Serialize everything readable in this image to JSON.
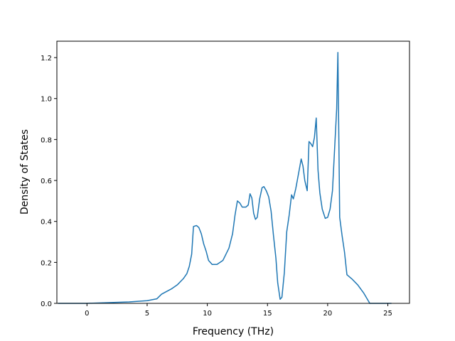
{
  "chart_data": {
    "type": "line",
    "title": "",
    "xlabel": "Frequency (THz)",
    "ylabel": "Density of States",
    "xlim": [
      -2.5,
      26.8
    ],
    "ylim": [
      0.0,
      1.28
    ],
    "xticks": [
      0,
      5,
      10,
      15,
      20,
      25
    ],
    "yticks": [
      0.0,
      0.2,
      0.4,
      0.6,
      0.8,
      1.0,
      1.2
    ],
    "xtick_labels": [
      "0",
      "5",
      "10",
      "15",
      "20",
      "25"
    ],
    "ytick_labels": [
      "0.0",
      "0.2",
      "0.4",
      "0.6",
      "0.8",
      "1.0",
      "1.2"
    ],
    "grid": false,
    "line_color": "#1f77b4",
    "series": [
      {
        "points": [
          [
            -2.4,
            0.0
          ],
          [
            0.0,
            0.0
          ],
          [
            2.0,
            0.004
          ],
          [
            3.5,
            0.007
          ],
          [
            5.0,
            0.013
          ],
          [
            5.8,
            0.022
          ],
          [
            6.2,
            0.045
          ],
          [
            7.0,
            0.07
          ],
          [
            7.5,
            0.09
          ],
          [
            8.0,
            0.12
          ],
          [
            8.3,
            0.145
          ],
          [
            8.5,
            0.18
          ],
          [
            8.7,
            0.24
          ],
          [
            8.85,
            0.375
          ],
          [
            9.1,
            0.38
          ],
          [
            9.3,
            0.37
          ],
          [
            9.5,
            0.34
          ],
          [
            9.7,
            0.29
          ],
          [
            9.9,
            0.255
          ],
          [
            10.1,
            0.21
          ],
          [
            10.4,
            0.19
          ],
          [
            10.8,
            0.19
          ],
          [
            11.3,
            0.21
          ],
          [
            11.8,
            0.27
          ],
          [
            12.1,
            0.34
          ],
          [
            12.3,
            0.43
          ],
          [
            12.5,
            0.5
          ],
          [
            12.7,
            0.49
          ],
          [
            12.9,
            0.47
          ],
          [
            13.2,
            0.47
          ],
          [
            13.4,
            0.48
          ],
          [
            13.55,
            0.535
          ],
          [
            13.7,
            0.515
          ],
          [
            13.85,
            0.44
          ],
          [
            14.0,
            0.41
          ],
          [
            14.15,
            0.42
          ],
          [
            14.35,
            0.51
          ],
          [
            14.55,
            0.565
          ],
          [
            14.7,
            0.57
          ],
          [
            14.9,
            0.55
          ],
          [
            15.1,
            0.52
          ],
          [
            15.3,
            0.45
          ],
          [
            15.5,
            0.33
          ],
          [
            15.7,
            0.22
          ],
          [
            15.85,
            0.1
          ],
          [
            16.05,
            0.02
          ],
          [
            16.2,
            0.03
          ],
          [
            16.4,
            0.15
          ],
          [
            16.6,
            0.35
          ],
          [
            16.8,
            0.43
          ],
          [
            17.0,
            0.53
          ],
          [
            17.15,
            0.51
          ],
          [
            17.35,
            0.56
          ],
          [
            17.6,
            0.64
          ],
          [
            17.8,
            0.705
          ],
          [
            17.95,
            0.67
          ],
          [
            18.1,
            0.6
          ],
          [
            18.3,
            0.55
          ],
          [
            18.45,
            0.79
          ],
          [
            18.6,
            0.78
          ],
          [
            18.75,
            0.765
          ],
          [
            18.9,
            0.81
          ],
          [
            19.05,
            0.905
          ],
          [
            19.2,
            0.65
          ],
          [
            19.35,
            0.54
          ],
          [
            19.55,
            0.46
          ],
          [
            19.8,
            0.415
          ],
          [
            20.0,
            0.42
          ],
          [
            20.2,
            0.46
          ],
          [
            20.4,
            0.55
          ],
          [
            20.6,
            0.78
          ],
          [
            20.75,
            0.95
          ],
          [
            20.85,
            1.225
          ],
          [
            21.0,
            0.42
          ],
          [
            21.2,
            0.33
          ],
          [
            21.4,
            0.25
          ],
          [
            21.6,
            0.14
          ],
          [
            22.0,
            0.12
          ],
          [
            22.5,
            0.09
          ],
          [
            23.0,
            0.05
          ],
          [
            23.3,
            0.02
          ],
          [
            23.5,
            0.0
          ],
          [
            25.3,
            0.0
          ]
        ]
      }
    ]
  }
}
